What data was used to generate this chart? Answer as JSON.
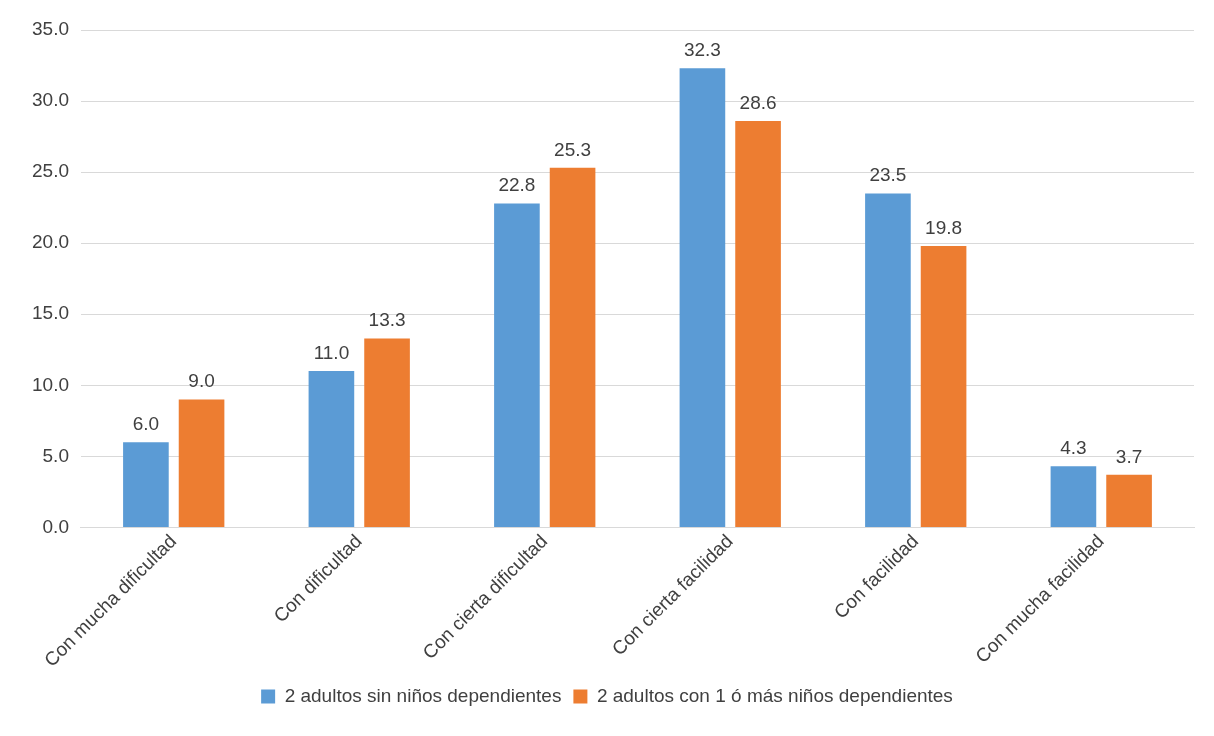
{
  "chart_data": {
    "type": "bar",
    "categories": [
      "Con mucha dificultad",
      "Con dificultad",
      "Con cierta dificultad",
      "Con cierta facilidad",
      "Con facilidad",
      "Con mucha facilidad"
    ],
    "series": [
      {
        "name": "2 adultos sin niños dependientes",
        "color": "#5b9bd5",
        "values": [
          6.0,
          11.0,
          22.8,
          32.3,
          23.5,
          4.3
        ],
        "value_labels": [
          "6.0",
          "11.0",
          "22.8",
          "32.3",
          "23.5",
          "4.3"
        ]
      },
      {
        "name": "2 adultos con 1 ó más niños dependientes",
        "color": "#ed7d31",
        "values": [
          9.0,
          13.3,
          25.3,
          28.6,
          19.8,
          3.7
        ],
        "value_labels": [
          "9.0",
          "13.3",
          "25.3",
          "28.6",
          "19.8",
          "3.7"
        ]
      }
    ],
    "ylim": [
      0,
      35
    ],
    "yticks": [
      {
        "value": 0,
        "label": "0.0"
      },
      {
        "value": 5,
        "label": "5.0"
      },
      {
        "value": 10,
        "label": "10.0"
      },
      {
        "value": 15,
        "label": "15.0"
      },
      {
        "value": 20,
        "label": "20.0"
      },
      {
        "value": 25,
        "label": "25.0"
      },
      {
        "value": 30,
        "label": "30.0"
      },
      {
        "value": 35,
        "label": "35.0"
      }
    ],
    "grid": "y",
    "legend": "bottom"
  }
}
